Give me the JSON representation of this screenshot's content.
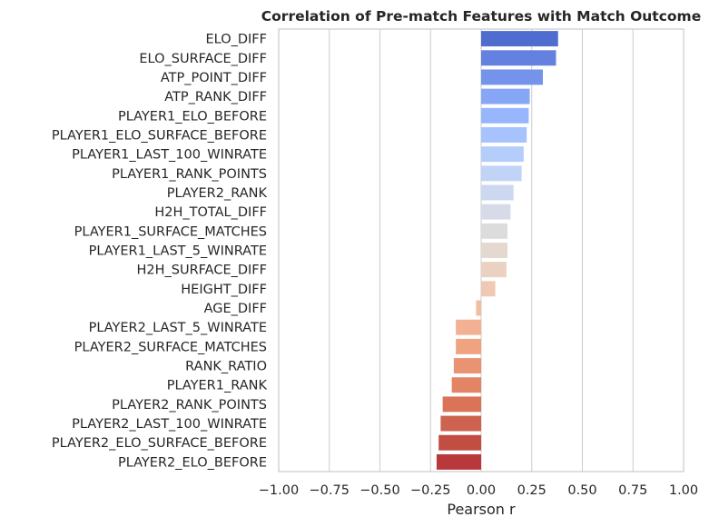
{
  "chart_data": {
    "type": "bar",
    "orientation": "horizontal",
    "title": "Correlation of Pre-match Features with Match Outcome",
    "xlabel": "Pearson r",
    "ylabel": "",
    "xlim": [
      -1.0,
      1.0
    ],
    "xticks": [
      -1.0,
      -0.75,
      -0.5,
      -0.25,
      0.0,
      0.25,
      0.5,
      0.75,
      1.0
    ],
    "xtick_labels": [
      "−1.00",
      "−0.75",
      "−0.50",
      "−0.25",
      "0.00",
      "0.25",
      "0.50",
      "0.75",
      "1.00"
    ],
    "grid": "vertical",
    "categories": [
      "ELO_DIFF",
      "ELO_SURFACE_DIFF",
      "ATP_POINT_DIFF",
      "ATP_RANK_DIFF",
      "PLAYER1_ELO_BEFORE",
      "PLAYER1_ELO_SURFACE_BEFORE",
      "PLAYER1_LAST_100_WINRATE",
      "PLAYER1_RANK_POINTS",
      "PLAYER2_RANK",
      "H2H_TOTAL_DIFF",
      "PLAYER1_SURFACE_MATCHES",
      "PLAYER1_LAST_5_WINRATE",
      "H2H_SURFACE_DIFF",
      "HEIGHT_DIFF",
      "AGE_DIFF",
      "PLAYER2_LAST_5_WINRATE",
      "PLAYER2_SURFACE_MATCHES",
      "RANK_RATIO",
      "PLAYER1_RANK",
      "PLAYER2_RANK_POINTS",
      "PLAYER2_LAST_100_WINRATE",
      "PLAYER2_ELO_SURFACE_BEFORE",
      "PLAYER2_ELO_BEFORE"
    ],
    "values": [
      0.38,
      0.37,
      0.305,
      0.24,
      0.235,
      0.225,
      0.21,
      0.2,
      0.16,
      0.145,
      0.13,
      0.13,
      0.125,
      0.07,
      -0.025,
      -0.125,
      -0.125,
      -0.135,
      -0.145,
      -0.19,
      -0.2,
      -0.21,
      -0.22
    ],
    "colors": [
      "#4f6ccf",
      "#6581e0",
      "#7693ec",
      "#87a6f5",
      "#97b6fb",
      "#a6c3fd",
      "#b4cdfb",
      "#c1d3f6",
      "#ccd8ef",
      "#d7dbe8",
      "#dddcdc",
      "#e5d8d1",
      "#ebd1c2",
      "#efc9b3",
      "#f1bea2",
      "#f2b192",
      "#f0a381",
      "#ea9373",
      "#e38465",
      "#d97459",
      "#cc624f",
      "#c24e42",
      "#b8383b"
    ],
    "palette": "coolwarm"
  }
}
